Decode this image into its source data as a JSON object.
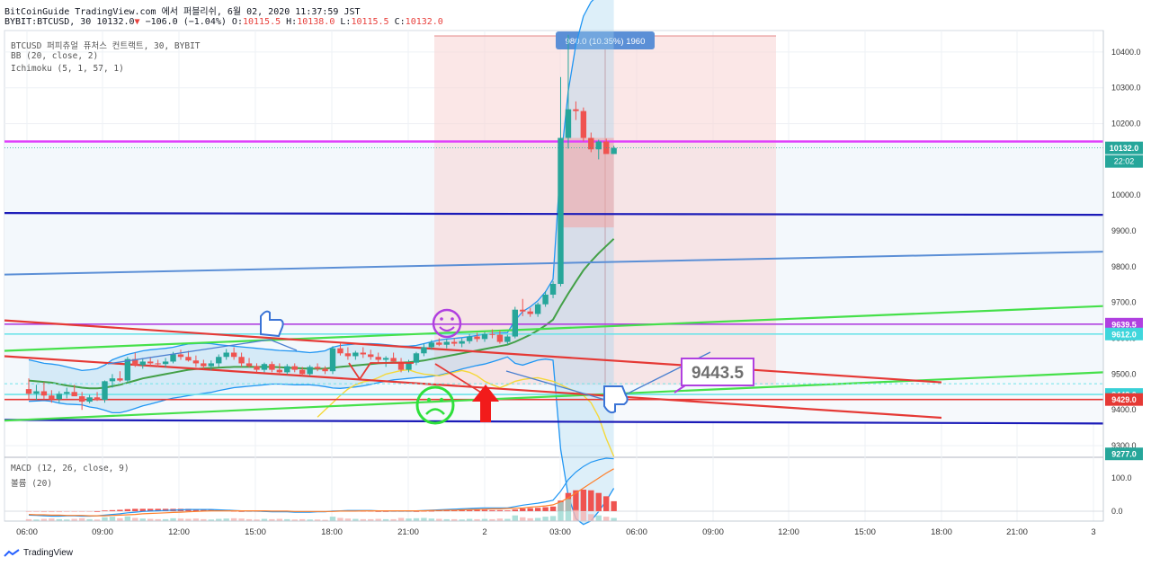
{
  "header": {
    "line1": "BitCoinGuide TradingView.com 에서 퍼블리쉬, 6월 02, 2020 11:37:59 JST",
    "symbol": "BYBIT:BTCUSD, 30",
    "last": "10132.0",
    "change_arrow": "▼",
    "change": "−106.0 (−1.04%)",
    "o_label": "O:",
    "o": "10115.5",
    "h_label": "H:",
    "h": "10138.0",
    "l_label": "L:",
    "l": "10115.5",
    "c_label": "C:",
    "c": "10132.0"
  },
  "legend": {
    "line1": "BTCUSD 퍼피츄얼 퓨처스 컨트랙트, 30, BYBIT",
    "line2": "BB (20, close, 2)",
    "line3": "Ichimoku (5, 1, 57, 1)",
    "macd": "MACD (12, 26, close, 9)",
    "volume": "볼륨 (20)"
  },
  "footer": {
    "brand": "TradingView"
  },
  "colors": {
    "up": "#26a69a",
    "down": "#ef5350",
    "magenta": "#e040fb",
    "navy": "#1b1bb8",
    "steel": "#5b8fd6",
    "green": "#43a047",
    "lime": "#45e04a",
    "red_line": "#e53935",
    "purple_line": "#b040e0",
    "cyan_line": "#6fe3e8",
    "yellow": "#f5d83a",
    "macd": "#2196f3",
    "signal": "#ff7f2a"
  },
  "chart_data": {
    "type": "candlestick",
    "symbol": "BYBIT:BTCUSD",
    "interval": "30",
    "ylim": [
      9270,
      10460
    ],
    "y_ticks": [
      9300,
      9400,
      9500,
      9600,
      9700,
      9800,
      9900,
      10000,
      10100,
      10200,
      10300,
      10400
    ],
    "x_ticks": [
      "06:00",
      "09:00",
      "12:00",
      "15:00",
      "18:00",
      "21:00",
      "2",
      "03:00",
      "06:00",
      "09:00",
      "12:00",
      "15:00",
      "18:00",
      "21:00",
      "3"
    ],
    "candles": [
      {
        "o": 9458,
        "h": 9488,
        "l": 9430,
        "c": 9445
      },
      {
        "o": 9445,
        "h": 9470,
        "l": 9428,
        "c": 9452
      },
      {
        "o": 9452,
        "h": 9478,
        "l": 9430,
        "c": 9440
      },
      {
        "o": 9440,
        "h": 9455,
        "l": 9420,
        "c": 9430
      },
      {
        "o": 9430,
        "h": 9452,
        "l": 9420,
        "c": 9445
      },
      {
        "o": 9445,
        "h": 9462,
        "l": 9432,
        "c": 9450
      },
      {
        "o": 9450,
        "h": 9470,
        "l": 9440,
        "c": 9438
      },
      {
        "o": 9438,
        "h": 9450,
        "l": 9400,
        "c": 9423
      },
      {
        "o": 9423,
        "h": 9442,
        "l": 9418,
        "c": 9435
      },
      {
        "o": 9435,
        "h": 9450,
        "l": 9425,
        "c": 9428
      },
      {
        "o": 9428,
        "h": 9482,
        "l": 9420,
        "c": 9480
      },
      {
        "o": 9480,
        "h": 9500,
        "l": 9462,
        "c": 9488
      },
      {
        "o": 9488,
        "h": 9508,
        "l": 9478,
        "c": 9482
      },
      {
        "o": 9482,
        "h": 9548,
        "l": 9476,
        "c": 9542
      },
      {
        "o": 9542,
        "h": 9560,
        "l": 9520,
        "c": 9525
      },
      {
        "o": 9525,
        "h": 9545,
        "l": 9515,
        "c": 9535
      },
      {
        "o": 9535,
        "h": 9548,
        "l": 9520,
        "c": 9530
      },
      {
        "o": 9530,
        "h": 9540,
        "l": 9520,
        "c": 9528
      },
      {
        "o": 9528,
        "h": 9545,
        "l": 9518,
        "c": 9535
      },
      {
        "o": 9535,
        "h": 9562,
        "l": 9530,
        "c": 9555
      },
      {
        "o": 9555,
        "h": 9568,
        "l": 9540,
        "c": 9548
      },
      {
        "o": 9548,
        "h": 9565,
        "l": 9535,
        "c": 9538
      },
      {
        "o": 9538,
        "h": 9552,
        "l": 9520,
        "c": 9530
      },
      {
        "o": 9530,
        "h": 9540,
        "l": 9515,
        "c": 9522
      },
      {
        "o": 9522,
        "h": 9538,
        "l": 9510,
        "c": 9530
      },
      {
        "o": 9530,
        "h": 9555,
        "l": 9520,
        "c": 9548
      },
      {
        "o": 9548,
        "h": 9570,
        "l": 9540,
        "c": 9560
      },
      {
        "o": 9560,
        "h": 9575,
        "l": 9540,
        "c": 9548
      },
      {
        "o": 9548,
        "h": 9560,
        "l": 9520,
        "c": 9530
      },
      {
        "o": 9530,
        "h": 9545,
        "l": 9518,
        "c": 9522
      },
      {
        "o": 9522,
        "h": 9530,
        "l": 9505,
        "c": 9512
      },
      {
        "o": 9512,
        "h": 9532,
        "l": 9505,
        "c": 9528
      },
      {
        "o": 9528,
        "h": 9535,
        "l": 9505,
        "c": 9512
      },
      {
        "o": 9512,
        "h": 9530,
        "l": 9500,
        "c": 9505
      },
      {
        "o": 9505,
        "h": 9528,
        "l": 9498,
        "c": 9522
      },
      {
        "o": 9522,
        "h": 9530,
        "l": 9505,
        "c": 9512
      },
      {
        "o": 9512,
        "h": 9520,
        "l": 9495,
        "c": 9500
      },
      {
        "o": 9500,
        "h": 9525,
        "l": 9495,
        "c": 9520
      },
      {
        "o": 9520,
        "h": 9530,
        "l": 9508,
        "c": 9515
      },
      {
        "o": 9515,
        "h": 9522,
        "l": 9500,
        "c": 9508
      },
      {
        "o": 9508,
        "h": 9578,
        "l": 9500,
        "c": 9572
      },
      {
        "o": 9572,
        "h": 9585,
        "l": 9552,
        "c": 9558
      },
      {
        "o": 9558,
        "h": 9575,
        "l": 9540,
        "c": 9550
      },
      {
        "o": 9550,
        "h": 9565,
        "l": 9540,
        "c": 9560
      },
      {
        "o": 9560,
        "h": 9575,
        "l": 9545,
        "c": 9555
      },
      {
        "o": 9555,
        "h": 9568,
        "l": 9540,
        "c": 9548
      },
      {
        "o": 9548,
        "h": 9560,
        "l": 9530,
        "c": 9540
      },
      {
        "o": 9540,
        "h": 9550,
        "l": 9520,
        "c": 9545
      },
      {
        "o": 9545,
        "h": 9560,
        "l": 9530,
        "c": 9535
      },
      {
        "o": 9535,
        "h": 9545,
        "l": 9505,
        "c": 9512
      },
      {
        "o": 9512,
        "h": 9540,
        "l": 9505,
        "c": 9532
      },
      {
        "o": 9532,
        "h": 9562,
        "l": 9525,
        "c": 9558
      },
      {
        "o": 9558,
        "h": 9585,
        "l": 9550,
        "c": 9575
      },
      {
        "o": 9575,
        "h": 9595,
        "l": 9568,
        "c": 9588
      },
      {
        "o": 9588,
        "h": 9600,
        "l": 9578,
        "c": 9582
      },
      {
        "o": 9582,
        "h": 9598,
        "l": 9572,
        "c": 9590
      },
      {
        "o": 9590,
        "h": 9600,
        "l": 9578,
        "c": 9585
      },
      {
        "o": 9585,
        "h": 9600,
        "l": 9575,
        "c": 9592
      },
      {
        "o": 9592,
        "h": 9612,
        "l": 9585,
        "c": 9605
      },
      {
        "o": 9605,
        "h": 9615,
        "l": 9590,
        "c": 9598
      },
      {
        "o": 9598,
        "h": 9618,
        "l": 9590,
        "c": 9612
      },
      {
        "o": 9612,
        "h": 9625,
        "l": 9600,
        "c": 9610
      },
      {
        "o": 9610,
        "h": 9622,
        "l": 9585,
        "c": 9590
      },
      {
        "o": 9590,
        "h": 9610,
        "l": 9582,
        "c": 9605
      },
      {
        "o": 9605,
        "h": 9688,
        "l": 9600,
        "c": 9680
      },
      {
        "o": 9680,
        "h": 9710,
        "l": 9662,
        "c": 9675
      },
      {
        "o": 9675,
        "h": 9685,
        "l": 9660,
        "c": 9668
      },
      {
        "o": 9668,
        "h": 9700,
        "l": 9660,
        "c": 9695
      },
      {
        "o": 9695,
        "h": 9732,
        "l": 9688,
        "c": 9722
      },
      {
        "o": 9722,
        "h": 9760,
        "l": 9712,
        "c": 9752
      },
      {
        "o": 9752,
        "h": 10330,
        "l": 9745,
        "c": 10160
      },
      {
        "o": 10160,
        "h": 10448,
        "l": 10130,
        "c": 10240
      },
      {
        "o": 10240,
        "h": 10262,
        "l": 10210,
        "c": 10235
      },
      {
        "o": 10235,
        "h": 10245,
        "l": 10150,
        "c": 10160
      },
      {
        "o": 10160,
        "h": 10175,
        "l": 10120,
        "c": 10128
      },
      {
        "o": 10128,
        "h": 10155,
        "l": 10100,
        "c": 10150
      },
      {
        "o": 10150,
        "h": 10158,
        "l": 10118,
        "c": 10115
      },
      {
        "o": 10115,
        "h": 10138,
        "l": 10115,
        "c": 10132
      }
    ],
    "last_price": 10132.0,
    "price_labels": [
      "10132.0",
      "9639.5",
      "9612.0",
      "9443.0",
      "9429.0",
      "9277.0"
    ],
    "countdown": "22:02",
    "measure_label": "980.0 (10.35%) 1960",
    "annotation": "9443.5",
    "horizontal_levels": [
      {
        "value": 10150,
        "color": "magenta"
      },
      {
        "value": 9639.5,
        "color": "purple_line"
      },
      {
        "value": 9612,
        "color": "cyan_line"
      },
      {
        "value": 9443,
        "color": "cyan_line"
      },
      {
        "value": 9429,
        "color": "red_line"
      }
    ],
    "bollinger": {
      "upper": [
        9540,
        9535,
        9530,
        9528,
        9525,
        9520,
        9515,
        9510,
        9512,
        9515,
        9525,
        9540,
        9548,
        9555,
        9560,
        9565,
        9568,
        9570,
        9572,
        9575,
        9580,
        9584,
        9585,
        9586,
        9585,
        9582,
        9580,
        9578,
        9576,
        9574,
        9572,
        9570,
        9568,
        9566,
        9565,
        9564,
        9562,
        9560,
        9562,
        9565,
        9575,
        9580,
        9582,
        9584,
        9585,
        9585,
        9584,
        9582,
        9580,
        9578,
        9578,
        9580,
        9585,
        9590,
        9595,
        9598,
        9600,
        9602,
        9605,
        9608,
        9612,
        9614,
        9615,
        9616,
        9650,
        9675,
        9688,
        9705,
        9730,
        9765,
        10090,
        10290,
        10420,
        10500,
        10540,
        10560,
        10570,
        10575
      ],
      "basis": [
        9482,
        9480,
        9478,
        9476,
        9472,
        9468,
        9465,
        9462,
        9460,
        9460,
        9462,
        9466,
        9470,
        9476,
        9482,
        9488,
        9492,
        9496,
        9500,
        9504,
        9508,
        9512,
        9514,
        9516,
        9517,
        9518,
        9519,
        9520,
        9520,
        9520,
        9520,
        9520,
        9520,
        9519,
        9518,
        9517,
        9516,
        9515,
        9515,
        9515,
        9518,
        9520,
        9522,
        9524,
        9526,
        9528,
        9530,
        9531,
        9532,
        9532,
        9533,
        9535,
        9538,
        9542,
        9546,
        9550,
        9554,
        9558,
        9562,
        9566,
        9570,
        9574,
        9578,
        9582,
        9590,
        9600,
        9610,
        9622,
        9636,
        9652,
        9690,
        9725,
        9758,
        9790,
        9815,
        9838,
        9858,
        9878
      ],
      "lower": [
        9424,
        9425,
        9426,
        9424,
        9419,
        9416,
        9415,
        9414,
        9408,
        9405,
        9399,
        9392,
        9392,
        9397,
        9404,
        9411,
        9416,
        9422,
        9428,
        9433,
        9436,
        9440,
        9443,
        9446,
        9449,
        9454,
        9458,
        9462,
        9464,
        9466,
        9468,
        9470,
        9472,
        9472,
        9471,
        9470,
        9470,
        9470,
        9468,
        9465,
        9461,
        9460,
        9462,
        9464,
        9467,
        9471,
        9476,
        9480,
        9484,
        9486,
        9488,
        9490,
        9491,
        9494,
        9497,
        9502,
        9508,
        9514,
        9519,
        9524,
        9528,
        9534,
        9541,
        9548,
        9530,
        9525,
        9532,
        9539,
        9542,
        9539,
        9290,
        9160,
        9096,
        9080,
        9090,
        9116,
        9146,
        9181
      ]
    },
    "ichimoku_cloud": {
      "span_a": 10160,
      "span_b": 9910,
      "from_index": 70,
      "to_index": 77
    },
    "lagging_span": [
      9380,
      9400,
      9420,
      9440,
      9458,
      9470,
      9478,
      9482,
      9490,
      9500,
      9505,
      9510,
      9512,
      9505,
      9500,
      9498,
      9495,
      9500,
      9505,
      9510,
      9505,
      9495,
      9480,
      9470,
      9462,
      9470,
      9480,
      9485,
      9488,
      9490,
      9485,
      9480,
      9470,
      9460,
      9452,
      9440,
      9420,
      9380,
      9320,
      9270
    ],
    "macd": {
      "ylim": [
        -30,
        160
      ],
      "y_ticks": [
        0,
        100
      ],
      "macd": [
        -12,
        -13,
        -14,
        -15,
        -15,
        -14,
        -14,
        -15,
        -15,
        -14,
        -12,
        -10,
        -8,
        -5,
        -3,
        -1,
        0,
        1,
        2,
        3,
        4,
        5,
        5,
        5,
        5,
        4,
        3,
        2,
        1,
        0,
        0,
        -1,
        -2,
        -2,
        -2,
        -3,
        -3,
        -3,
        -2,
        -2,
        0,
        1,
        2,
        2,
        2,
        2,
        1,
        1,
        0,
        0,
        0,
        1,
        2,
        3,
        4,
        5,
        6,
        7,
        8,
        9,
        10,
        10,
        10,
        10,
        14,
        18,
        21,
        24,
        28,
        33,
        60,
        95,
        118,
        135,
        148,
        155,
        160,
        158
      ],
      "signal": [
        -10,
        -11,
        -11,
        -12,
        -12,
        -13,
        -13,
        -13,
        -14,
        -14,
        -14,
        -13,
        -12,
        -11,
        -10,
        -8,
        -7,
        -6,
        -5,
        -4,
        -3,
        -2,
        -1,
        0,
        1,
        1,
        1,
        1,
        1,
        1,
        1,
        1,
        0,
        0,
        0,
        -1,
        -1,
        -1,
        -1,
        -1,
        -1,
        0,
        0,
        0,
        1,
        1,
        1,
        1,
        1,
        1,
        1,
        1,
        1,
        2,
        2,
        3,
        3,
        4,
        5,
        5,
        6,
        7,
        7,
        8,
        9,
        10,
        12,
        14,
        16,
        19,
        28,
        40,
        55,
        70,
        85,
        100,
        115,
        128
      ],
      "histogram": [
        -2,
        -2,
        -3,
        -3,
        -3,
        -1,
        -1,
        -2,
        -1,
        0,
        2,
        3,
        4,
        6,
        7,
        7,
        7,
        7,
        7,
        7,
        7,
        7,
        6,
        5,
        4,
        3,
        2,
        1,
        0,
        -1,
        -1,
        -2,
        -2,
        -2,
        -2,
        -2,
        -2,
        -2,
        -1,
        -1,
        1,
        1,
        2,
        2,
        1,
        1,
        0,
        0,
        -1,
        -1,
        -1,
        0,
        1,
        1,
        2,
        2,
        3,
        3,
        3,
        4,
        4,
        3,
        3,
        2,
        5,
        8,
        9,
        10,
        12,
        14,
        32,
        55,
        63,
        65,
        63,
        55,
        45,
        30
      ]
    },
    "volume": [
      6,
      5,
      7,
      8,
      6,
      5,
      7,
      9,
      6,
      5,
      12,
      14,
      9,
      15,
      10,
      8,
      7,
      6,
      6,
      9,
      8,
      7,
      8,
      6,
      5,
      7,
      8,
      9,
      8,
      6,
      5,
      7,
      6,
      7,
      6,
      5,
      6,
      5,
      5,
      4,
      14,
      10,
      8,
      7,
      6,
      6,
      7,
      6,
      6,
      10,
      8,
      9,
      10,
      8,
      7,
      6,
      6,
      5,
      7,
      6,
      7,
      6,
      8,
      7,
      18,
      12,
      9,
      10,
      14,
      16,
      60,
      70,
      35,
      30,
      22,
      18,
      14,
      10
    ]
  }
}
